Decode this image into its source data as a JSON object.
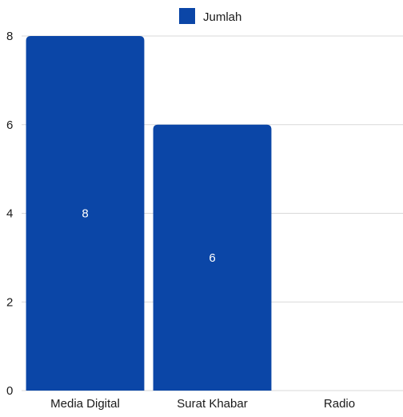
{
  "chart_data": {
    "type": "bar",
    "categories": [
      "Media Digital",
      "Surat Khabar",
      "Radio"
    ],
    "series": [
      {
        "name": "Jumlah",
        "values": [
          8,
          6,
          0
        ],
        "color": "#0b46a7"
      }
    ],
    "data_labels": [
      "8",
      "6",
      ""
    ],
    "yticks": [
      0,
      2,
      4,
      6,
      8
    ],
    "ylim": [
      0,
      8
    ],
    "grid": true,
    "legend_position": "top-center"
  },
  "colors": {
    "bar": "#0b46a7",
    "grid": "#d9d9d9",
    "axis_text": "#1a1a1a",
    "data_label": "#ffffff"
  }
}
